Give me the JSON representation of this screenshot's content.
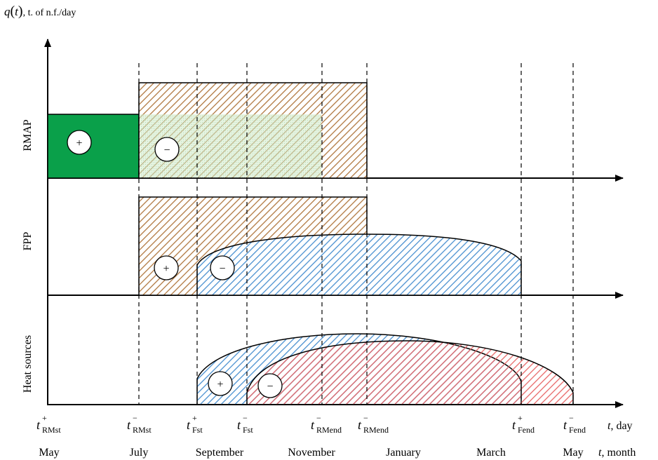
{
  "y_axis_label": {
    "q": "q",
    "paren_open": "(",
    "t": "t",
    "paren_close": ")",
    "unit": ", t. of n.f./day"
  },
  "panels": [
    {
      "key": "rmap",
      "label": "RMAP"
    },
    {
      "key": "fpp",
      "label": "FPP"
    },
    {
      "key": "heat",
      "label": "Heat sources"
    }
  ],
  "signs": {
    "plus": "+",
    "minus": "−"
  },
  "time_points": [
    {
      "key": "rmst_plus",
      "base": "t",
      "sup": "+",
      "sub": "RMst"
    },
    {
      "key": "rmst_minus",
      "base": "t",
      "sup": "−",
      "sub": "RMst"
    },
    {
      "key": "fst_plus",
      "base": "t",
      "sup": "+",
      "sub": "Fst"
    },
    {
      "key": "fst_minus",
      "base": "t",
      "sup": "−",
      "sub": "Fst"
    },
    {
      "key": "rmend_minus",
      "base": "t",
      "sup": "−",
      "sub": "RMend"
    },
    {
      "key": "rmend_plus",
      "base": "t",
      "sup": "−",
      "sub": "RMend"
    },
    {
      "key": "fend_plus",
      "base": "t",
      "sup": "+",
      "sub": "Fend"
    },
    {
      "key": "fend_minus",
      "base": "t",
      "sup": "−",
      "sub": "Fend"
    }
  ],
  "x_axis_day": {
    "var": "t",
    "unit": ", day"
  },
  "months": [
    "May",
    "July",
    "September",
    "November",
    "January",
    "March",
    "May"
  ],
  "x_axis_month": {
    "var": "t",
    "unit": ", month"
  },
  "colors": {
    "green_fill": "#0aa04a",
    "brown_hatch": "#b07840",
    "blue_hatch": "#4a90d0",
    "red_hatch": "#e86868",
    "light_green_overlay": "#cfe8c8"
  }
}
